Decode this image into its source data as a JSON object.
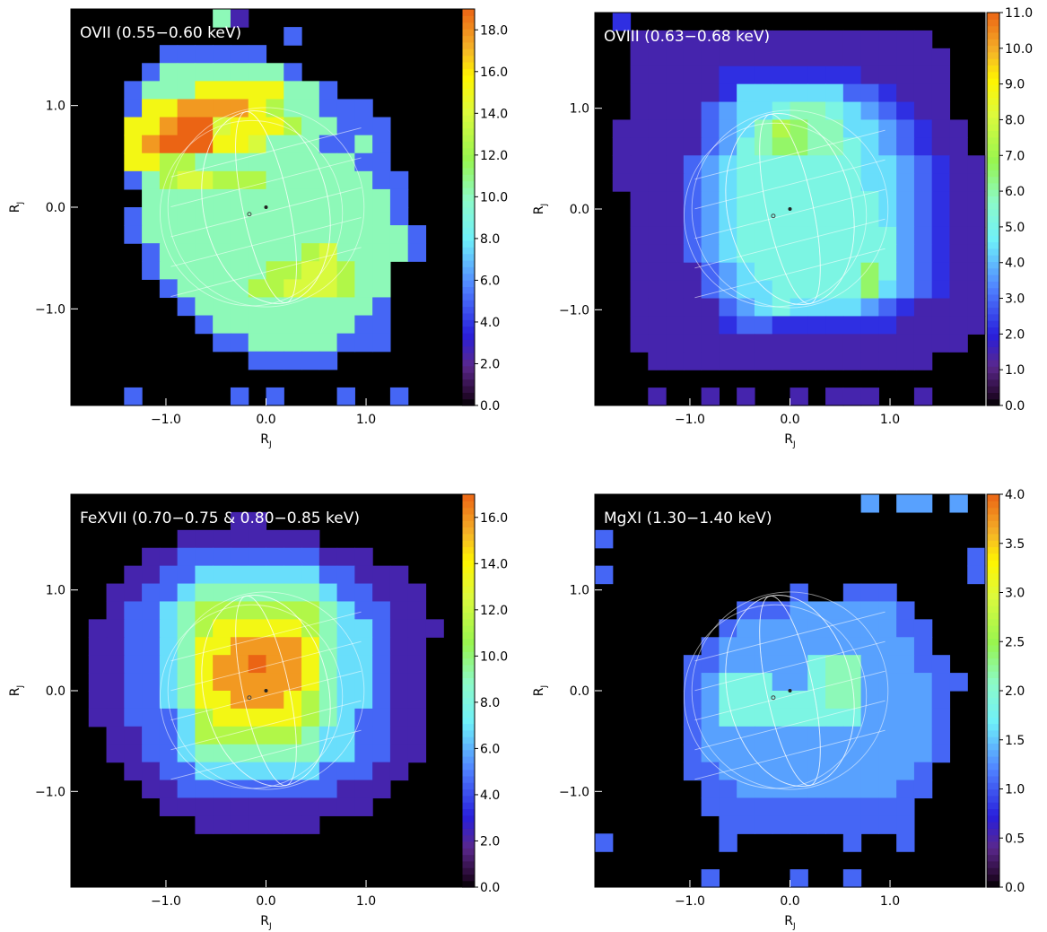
{
  "figure": {
    "axis_unit": "R",
    "axis_unit_sub": "J"
  },
  "chart_data": [
    {
      "type": "heatmap",
      "title": "OVII (0.55−0.60 keV)",
      "xlabel": "RJ",
      "ylabel": "RJ",
      "xlim": [
        -1.95,
        1.95
      ],
      "ylim": [
        -1.95,
        1.95
      ],
      "xticks": [
        -1.0,
        0.0,
        1.0
      ],
      "yticks": [
        -1.0,
        0.0,
        1.0
      ],
      "tick_labels": [
        "−1.0",
        "0.0",
        "1.0"
      ],
      "colorbar": {
        "min": 0.0,
        "max": 19.0,
        "ticks": [
          0.0,
          2.0,
          4.0,
          6.0,
          8.0,
          10.0,
          12.0,
          14.0,
          16.0,
          18.0
        ],
        "tick_labels": [
          "0.0",
          "2.0",
          "4.0",
          "6.0",
          "8.0",
          "10.0",
          "12.0",
          "14.0",
          "16.0",
          "18.0"
        ]
      },
      "grid_size": 22,
      "values": [
        "0000000082000000000000",
        "0000000000004000000000",
        "0000044444400000000000",
        "0000488888884000000000",
        "0004888ccccc8840000000",
        "0004cceeeeca8844400000",
        "000cceffbccca884440000",
        "000cegffccb88844840000",
        "000ccaa88888888844000",
        "00048abbaaa8888884400",
        "0000888888888888884000",
        "0004888888888888884000",
        "0004888888888888888400",
        "0000488888888ab8888400",
        "00004888888aabba880000",
        "0000048888aabbba880000",
        "0000004888888888840000",
        "0000000488888888440000",
        "0000000044888884440000",
        "0000000000444440000000",
        "0000000000000000000000",
        "0004000004040004004000"
      ],
      "grid_scale": 1.0,
      "series_note": ""
    },
    {
      "type": "heatmap",
      "title": "OVIII (0.63−0.68 keV)",
      "xlabel": "RJ",
      "ylabel": "RJ",
      "xlim": [
        -1.95,
        1.95
      ],
      "ylim": [
        -1.95,
        1.95
      ],
      "xticks": [
        -1.0,
        0.0,
        1.0
      ],
      "yticks": [
        -1.0,
        0.0,
        1.0
      ],
      "tick_labels": [
        "−1.0",
        "0.0",
        "1.0"
      ],
      "colorbar": {
        "min": 0.0,
        "max": 11.0,
        "ticks": [
          0.0,
          1.0,
          2.0,
          3.0,
          4.0,
          5.0,
          6.0,
          7.0,
          8.0,
          9.0,
          10.0,
          11.0
        ],
        "tick_labels": [
          "0.0",
          "1.0",
          "2.0",
          "3.0",
          "4.0",
          "5.0",
          "6.0",
          "7.0",
          "8.0",
          "9.0",
          "10.0",
          "11.0"
        ]
      },
      "grid_size": 22,
      "values": [
        "0300000000000000000000",
        "0022222222222222222000",
        "0022222222222222222200",
        "0022222333333332222200",
        "0022222366666644322200",
        "0022224566788765432200",
        "0222224568a98866543220",
        "0222224578998876543220",
        "0222245677777776654322",
        "0222245677777776654322",
        "0022245677777777654322",
        "0022245677777777654322",
        "0022245677777777754322",
        "0022245677777777754322",
        "0022224567777779754322",
        "0022224566777779654322",
        "0022222456766665432222",
        "0022222344333333322222",
        "0022222222222222222220",
        "0002222222222222222000",
        "0000000000000000000000",
        "0002002020020222002000"
      ],
      "grid_scale": 1.0,
      "series_note": ""
    },
    {
      "type": "heatmap",
      "title": "FeXVII (0.70−0.75 & 0.80−0.85 keV)",
      "xlabel": "RJ",
      "ylabel": "RJ",
      "xlim": [
        -1.95,
        1.95
      ],
      "ylim": [
        -1.95,
        1.95
      ],
      "xticks": [
        -1.0,
        0.0,
        1.0
      ],
      "yticks": [
        -1.0,
        0.0,
        1.0
      ],
      "tick_labels": [
        "−1.0",
        "0.0",
        "1.0"
      ],
      "colorbar": {
        "min": 0.0,
        "max": 17.0,
        "ticks": [
          0.0,
          2.0,
          4.0,
          6.0,
          8.0,
          10.0,
          12.0,
          14.0,
          16.0
        ],
        "tick_labels": [
          "0.0",
          "2.0",
          "4.0",
          "6.0",
          "8.0",
          "10.0",
          "12.0",
          "14.0",
          "16.0"
        ]
      },
      "grid_size": 22,
      "values": [
        "0000000000000000000000",
        "0000000002200000000000",
        "0000002222222200000000",
        "0000224444444422200000",
        "0002244666666644222000",
        "0022446888888864422200",
        "0024468aaaaaaa86442200",
        "0224468accccca86642220",
        "0224468cceeeec86642200",
        "0224468ceefeec86642200",
        "0224468ceeeeec86642200",
        "0224468cceeeca86642200",
        "0224446accccca86442200",
        "0022446aaaaaa866442200",
        "0022446888888866442200",
        "0002244666666644422000",
        "0000224444444442220000",
        "0000022222222222200000",
        "0000000222222200000000",
        "0000000000000000000000",
        "0000000000000000000000",
        "0000000000000000000000"
      ],
      "grid_scale": 1.0,
      "series_note": ""
    },
    {
      "type": "heatmap",
      "title": "MgXI (1.30−1.40 keV)",
      "xlabel": "RJ",
      "ylabel": "RJ",
      "xlim": [
        -1.95,
        1.95
      ],
      "ylim": [
        -1.95,
        1.95
      ],
      "xticks": [
        -1.0,
        0.0,
        1.0
      ],
      "yticks": [
        -1.0,
        0.0,
        1.0
      ],
      "tick_labels": [
        "−1.0",
        "0.0",
        "1.0"
      ],
      "colorbar": {
        "min": 0.0,
        "max": 4.0,
        "ticks": [
          0.0,
          0.5,
          1.0,
          1.5,
          2.0,
          2.5,
          3.0,
          3.5,
          4.0
        ],
        "tick_labels": [
          "0.0",
          "0.5",
          "1.0",
          "1.5",
          "2.0",
          "2.5",
          "3.0",
          "3.5",
          "4.0"
        ]
      },
      "grid_size": 22,
      "values": [
        "0000000000000005055050",
        "0000000000000000000000",
        "4000000000000000000000",
        "0000000000000000000004",
        "4000000000000000000004",
        "0000000000040044400000",
        "0000000044455555540000",
        "0000000455555555544000",
        "0000004555555555554000",
        "0000044555557885554400",
        "0000045777557885555440",
        "0000045777777885555400",
        "0000045777777775555400",
        "0000045555555555555400",
        "0000045555555555555400",
        "0000044555555555554000",
        "0000004455555555544000",
        "0000004444444444440000",
        "0000000444444444440000",
        "4000000400000040040000",
        "0000000000000000000000",
        "0000004000040040000000"
      ],
      "grid_scale": 1.0,
      "series_note": ""
    }
  ]
}
